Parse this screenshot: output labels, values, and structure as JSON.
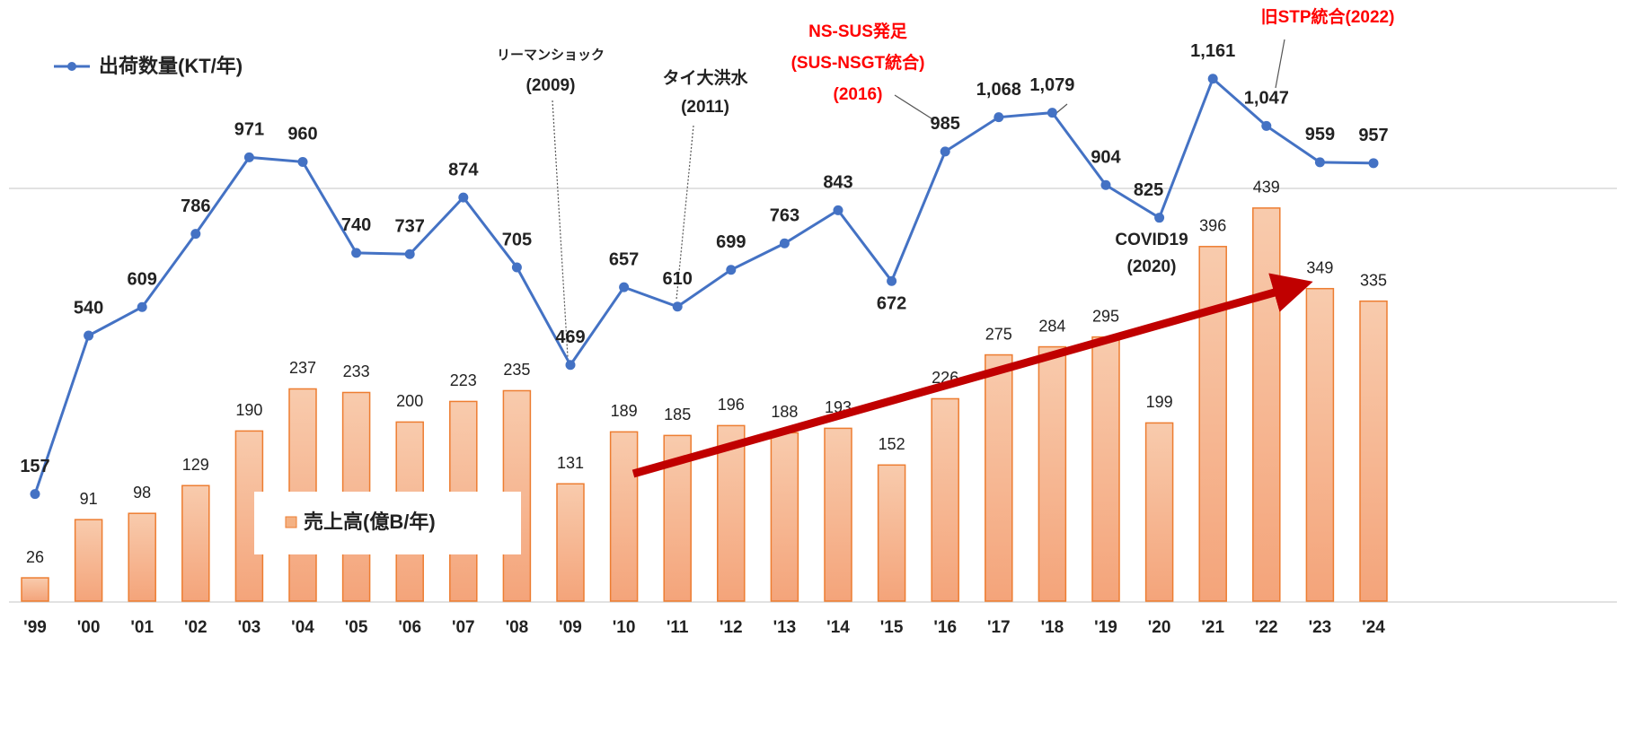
{
  "chart_data": {
    "type": "bar-line",
    "categories": [
      "'99",
      "'00",
      "'01",
      "'02",
      "'03",
      "'04",
      "'05",
      "'06",
      "'07",
      "'08",
      "'09",
      "'10",
      "'11",
      "'12",
      "'13",
      "'14",
      "'15",
      "'16",
      "'17",
      "'18",
      "'19",
      "'20",
      "'21",
      "'22",
      "'23",
      "'24"
    ],
    "series": [
      {
        "name": "売上高(億B/年)",
        "type": "bar",
        "color": "#f4b183",
        "values": [
          26,
          91,
          98,
          129,
          190,
          237,
          233,
          200,
          223,
          235,
          131,
          189,
          185,
          196,
          188,
          193,
          152,
          226,
          275,
          284,
          295,
          199,
          396,
          439,
          349,
          335
        ]
      },
      {
        "name": "出荷数量(KT/年)",
        "type": "line",
        "color": "#4472c4",
        "axis": "y2",
        "values": [
          157,
          540,
          609,
          786,
          971,
          960,
          740,
          737,
          874,
          705,
          469,
          657,
          610,
          699,
          763,
          843,
          672,
          985,
          1068,
          1079,
          904,
          825,
          1161,
          1047,
          959,
          957
        ],
        "value_labels": [
          "157",
          "540",
          "609",
          "786",
          "971",
          "960",
          "740",
          "737",
          "874",
          "705",
          "469",
          "657",
          "610",
          "699",
          "763",
          "843",
          "672",
          "985",
          "1,068",
          "1,079",
          "904",
          "825",
          "1,161",
          "1,047",
          "959",
          "957"
        ]
      }
    ],
    "annotations": [
      {
        "lines": [
          "リーマンショック",
          "(2009)"
        ],
        "color": "#222"
      },
      {
        "lines": [
          "タイ大洪水",
          "(2011)"
        ],
        "color": "#222"
      },
      {
        "lines": [
          "NS-SUS発足",
          "(SUS-NSGT統合)",
          "(2016)"
        ],
        "color": "#ff0000"
      },
      {
        "lines": [
          "旧STP統合(2022)"
        ],
        "color": "#ff0000"
      },
      {
        "lines": [
          "COVID19",
          "(2020)"
        ],
        "color": "#222"
      }
    ]
  }
}
